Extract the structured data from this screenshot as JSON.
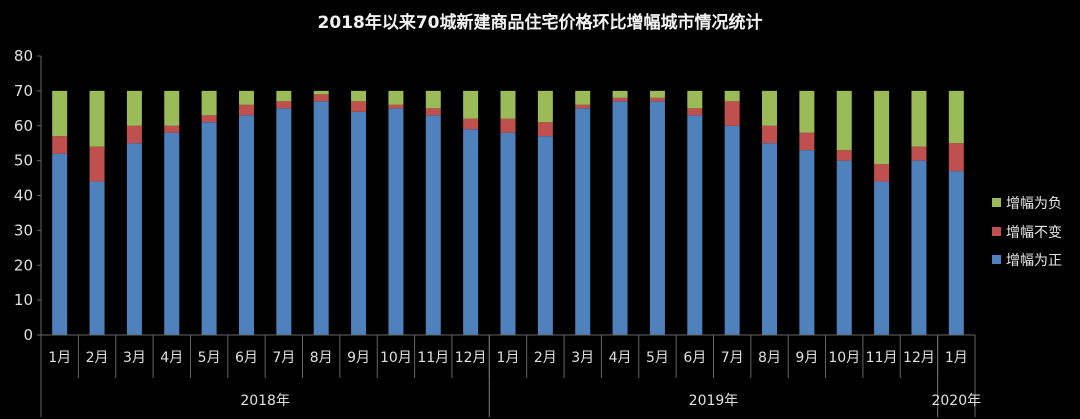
{
  "chart_data": {
    "type": "bar",
    "stacked": true,
    "title": "2018年以来70城新建商品住宅价格环比增幅城市情况统计",
    "xlabel": "",
    "ylabel": "",
    "ylim": [
      0,
      80
    ],
    "yticks": [
      0,
      10,
      20,
      30,
      40,
      50,
      60,
      70,
      80
    ],
    "grid": false,
    "legend_position": "right",
    "categories": [
      "1月",
      "2月",
      "3月",
      "4月",
      "5月",
      "6月",
      "7月",
      "8月",
      "9月",
      "10月",
      "11月",
      "12月",
      "1月",
      "2月",
      "3月",
      "4月",
      "5月",
      "6月",
      "7月",
      "8月",
      "9月",
      "10月",
      "11月",
      "12月",
      "1月"
    ],
    "groups": [
      {
        "label": "2018年",
        "count": 12
      },
      {
        "label": "2019年",
        "count": 12
      },
      {
        "label": "2020年",
        "count": 1
      }
    ],
    "series": [
      {
        "name": "增幅为正",
        "color": "#4f81bd",
        "values": [
          52,
          44,
          55,
          58,
          61,
          63,
          65,
          67,
          64,
          65,
          63,
          59,
          58,
          57,
          65,
          67,
          67,
          63,
          60,
          55,
          53,
          50,
          44,
          50,
          47
        ]
      },
      {
        "name": "增幅不变",
        "color": "#c0504d",
        "values": [
          5,
          10,
          5,
          2,
          2,
          3,
          2,
          2,
          3,
          1,
          2,
          3,
          4,
          4,
          1,
          1,
          1,
          2,
          7,
          5,
          5,
          3,
          5,
          4,
          8
        ]
      },
      {
        "name": "增幅为负",
        "color": "#9bbb59",
        "values": [
          13,
          16,
          10,
          10,
          7,
          4,
          3,
          1,
          3,
          4,
          5,
          8,
          8,
          9,
          4,
          2,
          2,
          5,
          3,
          10,
          12,
          17,
          21,
          16,
          15
        ]
      }
    ]
  }
}
